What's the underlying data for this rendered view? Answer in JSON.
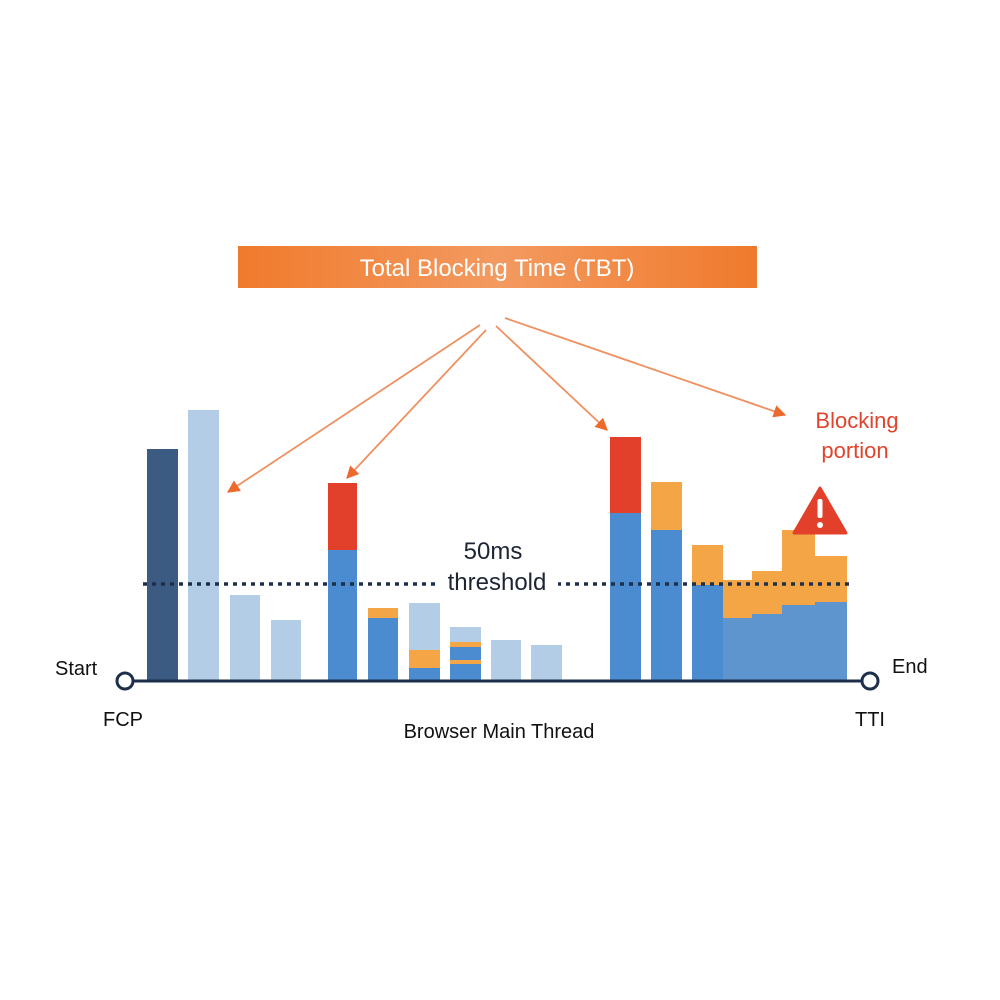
{
  "title": "Total Blocking Time (TBT)",
  "annotation": {
    "lines": [
      "Blocking",
      "portion"
    ]
  },
  "threshold": {
    "lines": [
      "50ms",
      "threshold"
    ]
  },
  "timeline": {
    "start": "Start",
    "end": "End",
    "start_marker": "FCP",
    "end_marker": "TTI",
    "label": "Browser Main Thread"
  }
}
